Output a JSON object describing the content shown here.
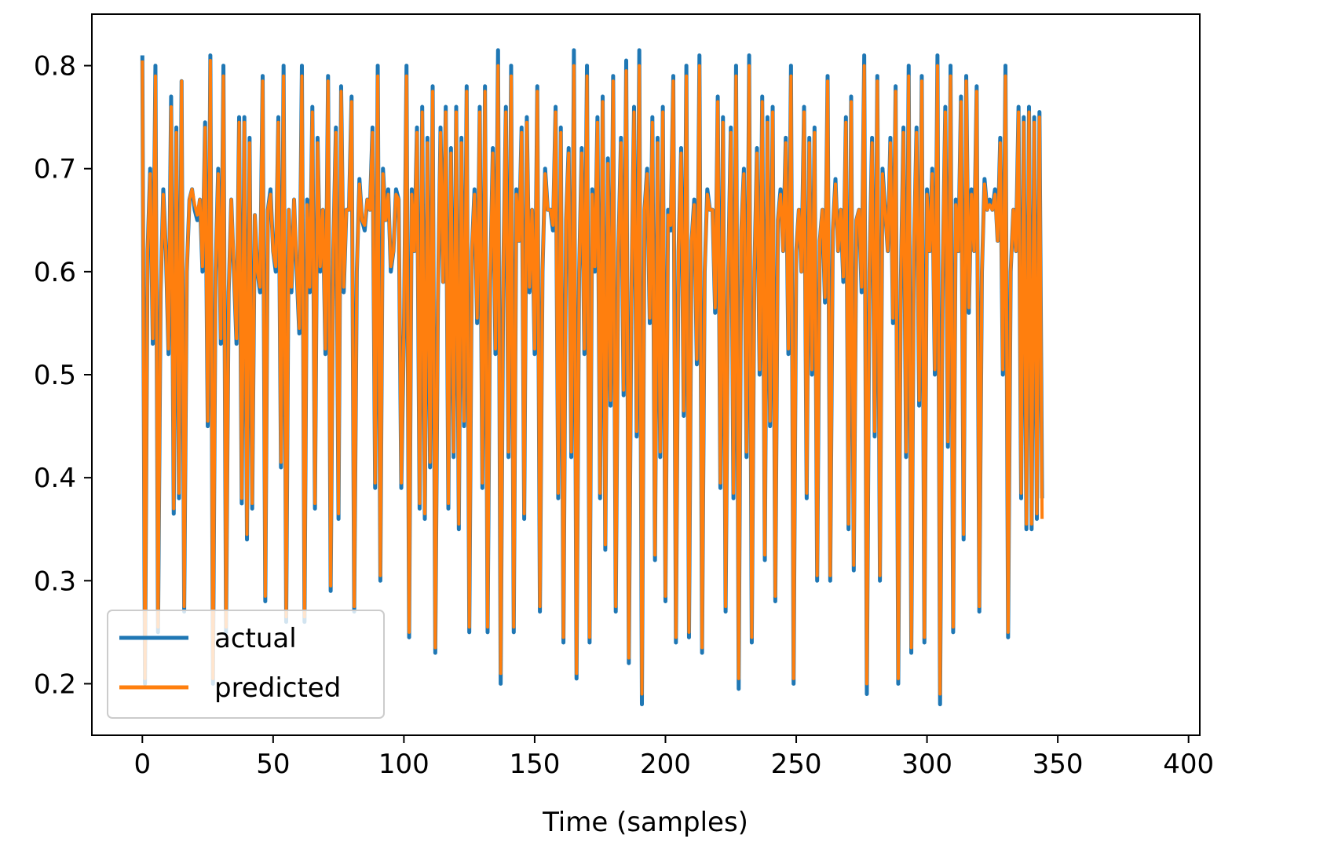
{
  "chart_data": {
    "type": "line",
    "title": "",
    "xlabel": "Time (samples)",
    "ylabel": "",
    "xlim": [
      -19.3,
      404.3
    ],
    "ylim": [
      0.15,
      0.85
    ],
    "xticks": [
      0,
      50,
      100,
      150,
      200,
      250,
      300,
      350,
      400
    ],
    "yticks": [
      0.2,
      0.3,
      0.4,
      0.5,
      0.6,
      0.7,
      0.8
    ],
    "xtick_labels": [
      "0",
      "50",
      "100",
      "150",
      "200",
      "250",
      "300",
      "350",
      "400"
    ],
    "ytick_labels": [
      "0.2",
      "0.3",
      "0.4",
      "0.5",
      "0.6",
      "0.7",
      "0.8"
    ],
    "grid": false,
    "legend_position": "bottom-left",
    "series": [
      {
        "name": "actual",
        "color": "#1f77b4",
        "x_start": 0,
        "values": [
          0.81,
          0.2,
          0.62,
          0.7,
          0.53,
          0.8,
          0.25,
          0.58,
          0.68,
          0.62,
          0.52,
          0.77,
          0.365,
          0.74,
          0.38,
          0.785,
          0.27,
          0.6,
          0.67,
          0.68,
          0.66,
          0.65,
          0.67,
          0.6,
          0.745,
          0.45,
          0.81,
          0.2,
          0.6,
          0.7,
          0.53,
          0.8,
          0.25,
          0.58,
          0.67,
          0.6,
          0.53,
          0.75,
          0.375,
          0.75,
          0.34,
          0.73,
          0.37,
          0.655,
          0.6,
          0.58,
          0.79,
          0.28,
          0.66,
          0.68,
          0.62,
          0.6,
          0.75,
          0.41,
          0.8,
          0.26,
          0.66,
          0.58,
          0.67,
          0.6,
          0.54,
          0.8,
          0.26,
          0.67,
          0.58,
          0.76,
          0.37,
          0.73,
          0.6,
          0.66,
          0.52,
          0.79,
          0.29,
          0.62,
          0.74,
          0.36,
          0.78,
          0.58,
          0.66,
          0.66,
          0.77,
          0.27,
          0.6,
          0.69,
          0.65,
          0.64,
          0.67,
          0.66,
          0.74,
          0.39,
          0.8,
          0.3,
          0.7,
          0.65,
          0.68,
          0.6,
          0.62,
          0.68,
          0.67,
          0.39,
          0.54,
          0.8,
          0.245,
          0.68,
          0.62,
          0.74,
          0.37,
          0.76,
          0.36,
          0.73,
          0.41,
          0.78,
          0.23,
          0.57,
          0.74,
          0.59,
          0.76,
          0.37,
          0.72,
          0.42,
          0.76,
          0.35,
          0.73,
          0.45,
          0.78,
          0.25,
          0.62,
          0.68,
          0.55,
          0.76,
          0.39,
          0.78,
          0.25,
          0.59,
          0.72,
          0.52,
          0.815,
          0.2,
          0.6,
          0.76,
          0.42,
          0.8,
          0.25,
          0.68,
          0.63,
          0.74,
          0.36,
          0.75,
          0.58,
          0.66,
          0.52,
          0.78,
          0.27,
          0.6,
          0.7,
          0.66,
          0.66,
          0.64,
          0.76,
          0.38,
          0.74,
          0.24,
          0.65,
          0.72,
          0.42,
          0.815,
          0.205,
          0.6,
          0.72,
          0.52,
          0.8,
          0.24,
          0.68,
          0.6,
          0.75,
          0.38,
          0.77,
          0.33,
          0.71,
          0.47,
          0.79,
          0.27,
          0.62,
          0.73,
          0.48,
          0.805,
          0.22,
          0.58,
          0.76,
          0.44,
          0.815,
          0.18,
          0.66,
          0.7,
          0.55,
          0.75,
          0.32,
          0.73,
          0.42,
          0.76,
          0.28,
          0.66,
          0.64,
          0.79,
          0.24,
          0.62,
          0.72,
          0.46,
          0.8,
          0.245,
          0.63,
          0.67,
          0.51,
          0.81,
          0.23,
          0.6,
          0.68,
          0.66,
          0.66,
          0.56,
          0.77,
          0.39,
          0.75,
          0.27,
          0.6,
          0.74,
          0.38,
          0.8,
          0.195,
          0.64,
          0.7,
          0.42,
          0.81,
          0.24,
          0.6,
          0.72,
          0.5,
          0.77,
          0.32,
          0.75,
          0.45,
          0.76,
          0.28,
          0.65,
          0.68,
          0.62,
          0.73,
          0.52,
          0.8,
          0.2,
          0.62,
          0.66,
          0.6,
          0.76,
          0.38,
          0.73,
          0.5,
          0.74,
          0.3,
          0.63,
          0.66,
          0.57,
          0.79,
          0.3,
          0.64,
          0.69,
          0.62,
          0.66,
          0.59,
          0.75,
          0.35,
          0.77,
          0.31,
          0.65,
          0.66,
          0.58,
          0.81,
          0.19,
          0.6,
          0.73,
          0.44,
          0.79,
          0.3,
          0.7,
          0.66,
          0.62,
          0.73,
          0.55,
          0.78,
          0.2,
          0.59,
          0.74,
          0.42,
          0.8,
          0.23,
          0.62,
          0.74,
          0.47,
          0.79,
          0.24,
          0.68,
          0.62,
          0.7,
          0.5,
          0.81,
          0.18,
          0.6,
          0.76,
          0.43,
          0.8,
          0.25,
          0.67,
          0.62,
          0.77,
          0.34,
          0.79,
          0.56,
          0.68,
          0.62,
          0.78,
          0.27,
          0.6,
          0.69,
          0.66,
          0.67,
          0.66,
          0.68,
          0.63,
          0.73,
          0.5,
          0.8,
          0.245,
          0.6,
          0.66,
          0.62,
          0.76,
          0.38,
          0.75,
          0.35,
          0.76,
          0.35,
          0.75,
          0.36,
          0.755,
          0.38
        ],
        "note_x_step": 1
      },
      {
        "name": "predicted",
        "color": "#ff7f0e",
        "x_start": 0,
        "values": [
          0.805,
          0.205,
          0.62,
          0.695,
          0.535,
          0.79,
          0.255,
          0.58,
          0.675,
          0.62,
          0.525,
          0.76,
          0.37,
          0.735,
          0.385,
          0.785,
          0.275,
          0.6,
          0.67,
          0.68,
          0.665,
          0.655,
          0.67,
          0.605,
          0.74,
          0.455,
          0.805,
          0.205,
          0.6,
          0.695,
          0.535,
          0.79,
          0.255,
          0.58,
          0.67,
          0.605,
          0.535,
          0.745,
          0.38,
          0.745,
          0.345,
          0.725,
          0.375,
          0.655,
          0.6,
          0.585,
          0.785,
          0.285,
          0.66,
          0.675,
          0.62,
          0.605,
          0.745,
          0.415,
          0.79,
          0.265,
          0.66,
          0.585,
          0.67,
          0.605,
          0.545,
          0.79,
          0.265,
          0.665,
          0.585,
          0.755,
          0.375,
          0.725,
          0.605,
          0.66,
          0.525,
          0.785,
          0.295,
          0.62,
          0.735,
          0.365,
          0.775,
          0.585,
          0.66,
          0.66,
          0.765,
          0.275,
          0.6,
          0.685,
          0.65,
          0.645,
          0.67,
          0.66,
          0.735,
          0.395,
          0.79,
          0.305,
          0.695,
          0.65,
          0.675,
          0.605,
          0.62,
          0.675,
          0.67,
          0.395,
          0.545,
          0.79,
          0.25,
          0.675,
          0.62,
          0.735,
          0.375,
          0.755,
          0.365,
          0.725,
          0.415,
          0.775,
          0.235,
          0.575,
          0.735,
          0.59,
          0.755,
          0.375,
          0.715,
          0.425,
          0.755,
          0.355,
          0.725,
          0.455,
          0.775,
          0.255,
          0.62,
          0.675,
          0.555,
          0.755,
          0.395,
          0.775,
          0.255,
          0.59,
          0.715,
          0.525,
          0.8,
          0.21,
          0.6,
          0.755,
          0.425,
          0.79,
          0.255,
          0.675,
          0.63,
          0.735,
          0.365,
          0.745,
          0.585,
          0.66,
          0.525,
          0.775,
          0.275,
          0.6,
          0.695,
          0.66,
          0.66,
          0.645,
          0.755,
          0.385,
          0.735,
          0.245,
          0.65,
          0.715,
          0.425,
          0.8,
          0.21,
          0.6,
          0.715,
          0.525,
          0.79,
          0.245,
          0.675,
          0.605,
          0.745,
          0.385,
          0.765,
          0.335,
          0.705,
          0.475,
          0.785,
          0.275,
          0.62,
          0.725,
          0.485,
          0.795,
          0.225,
          0.585,
          0.755,
          0.445,
          0.8,
          0.19,
          0.66,
          0.695,
          0.555,
          0.745,
          0.325,
          0.725,
          0.425,
          0.755,
          0.285,
          0.655,
          0.645,
          0.785,
          0.245,
          0.62,
          0.715,
          0.465,
          0.79,
          0.25,
          0.63,
          0.665,
          0.515,
          0.8,
          0.235,
          0.6,
          0.675,
          0.66,
          0.66,
          0.565,
          0.765,
          0.395,
          0.745,
          0.275,
          0.6,
          0.735,
          0.385,
          0.79,
          0.205,
          0.64,
          0.695,
          0.425,
          0.8,
          0.245,
          0.6,
          0.715,
          0.505,
          0.765,
          0.325,
          0.745,
          0.455,
          0.755,
          0.285,
          0.65,
          0.675,
          0.62,
          0.725,
          0.525,
          0.79,
          0.205,
          0.62,
          0.66,
          0.6,
          0.755,
          0.385,
          0.725,
          0.505,
          0.735,
          0.305,
          0.63,
          0.66,
          0.575,
          0.785,
          0.305,
          0.64,
          0.685,
          0.62,
          0.66,
          0.595,
          0.745,
          0.355,
          0.765,
          0.315,
          0.65,
          0.66,
          0.585,
          0.8,
          0.2,
          0.6,
          0.725,
          0.445,
          0.785,
          0.305,
          0.695,
          0.66,
          0.62,
          0.725,
          0.555,
          0.775,
          0.205,
          0.59,
          0.735,
          0.425,
          0.79,
          0.235,
          0.62,
          0.735,
          0.475,
          0.785,
          0.245,
          0.675,
          0.62,
          0.695,
          0.505,
          0.8,
          0.19,
          0.6,
          0.755,
          0.435,
          0.79,
          0.255,
          0.665,
          0.62,
          0.765,
          0.345,
          0.785,
          0.565,
          0.675,
          0.62,
          0.775,
          0.275,
          0.6,
          0.685,
          0.66,
          0.665,
          0.66,
          0.675,
          0.63,
          0.725,
          0.505,
          0.79,
          0.25,
          0.6,
          0.66,
          0.62,
          0.755,
          0.385,
          0.745,
          0.355,
          0.755,
          0.355,
          0.745,
          0.365,
          0.75,
          0.36
        ],
        "note_x_step": 1
      }
    ]
  }
}
